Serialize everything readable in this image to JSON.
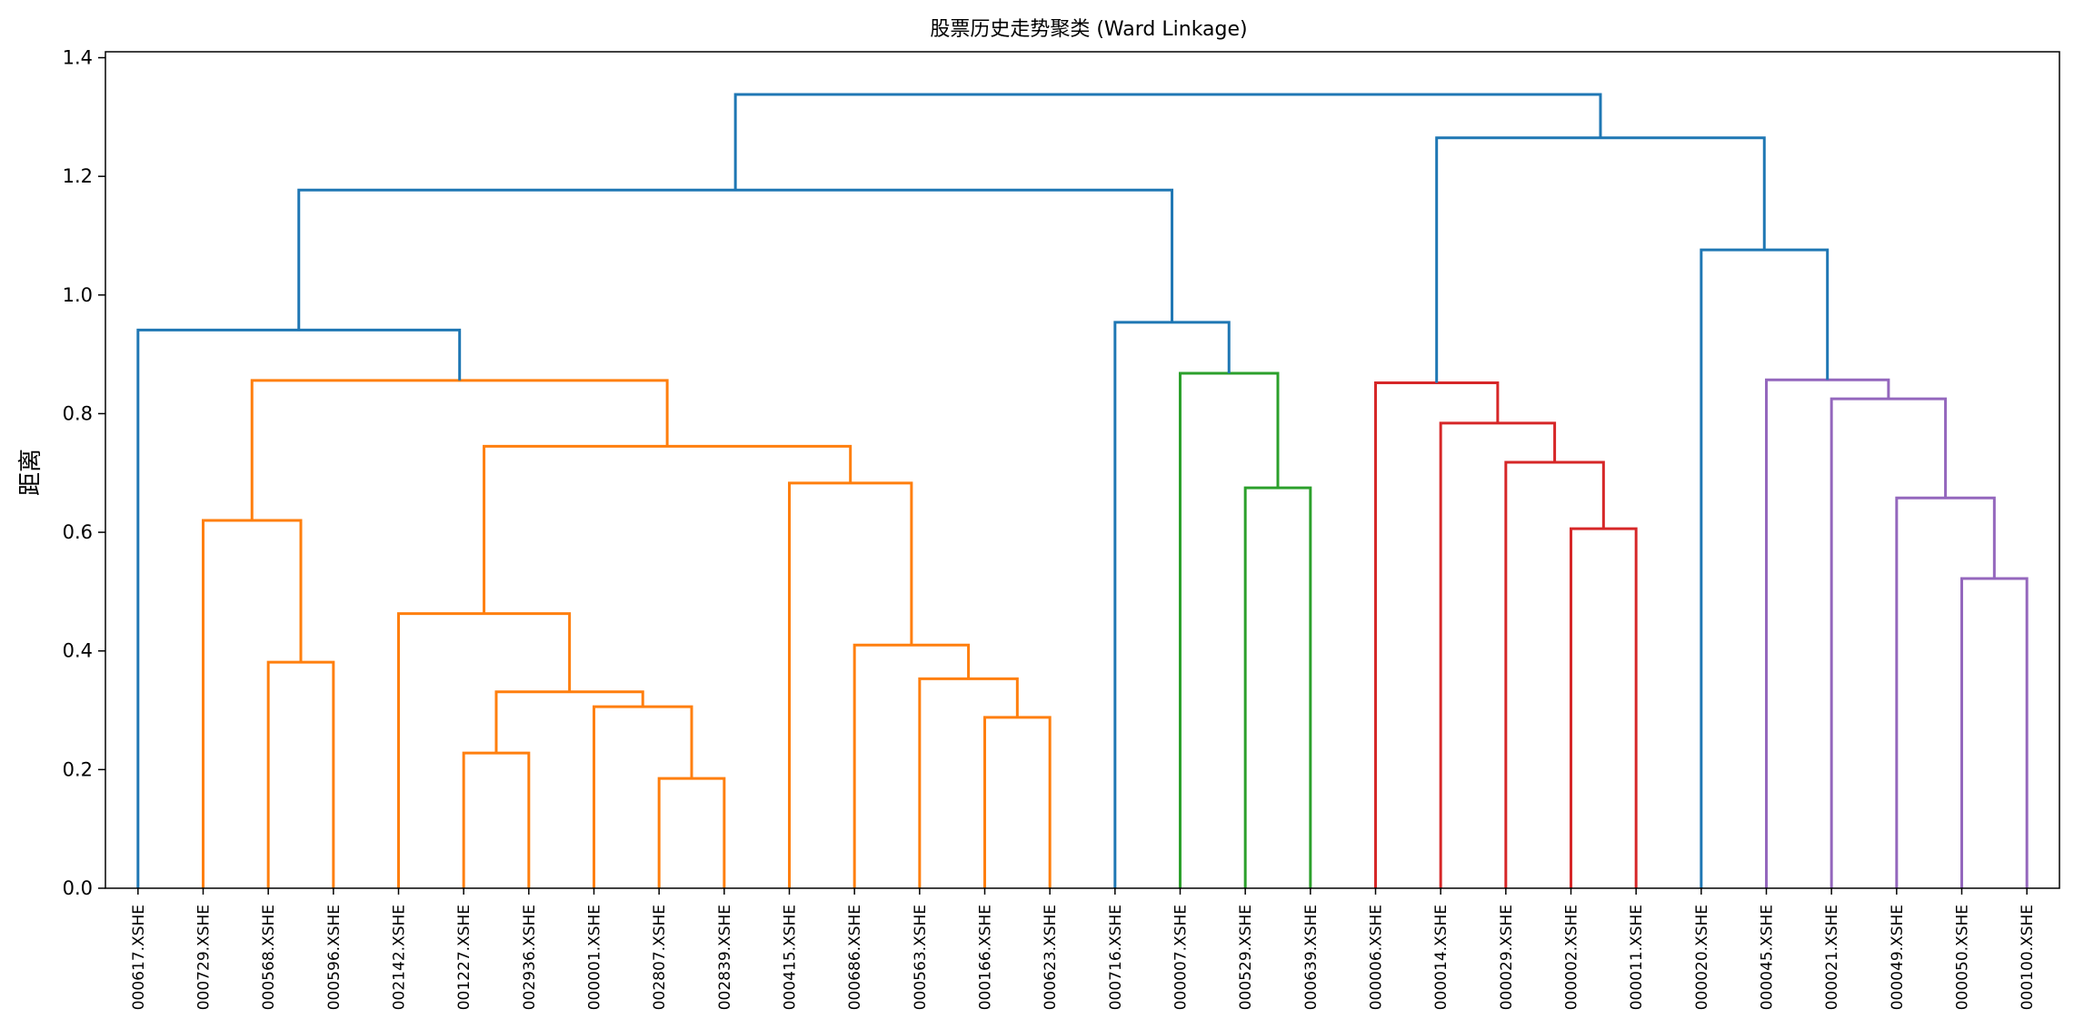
{
  "chart_data": {
    "type": "dendrogram",
    "title": "股票历史走势聚类 (Ward Linkage)",
    "xlabel": "",
    "ylabel": "距离",
    "ylim": [
      0,
      1.41
    ],
    "yticks": [
      "0.0",
      "0.2",
      "0.4",
      "0.6",
      "0.8",
      "1.0",
      "1.2",
      "1.4"
    ],
    "ytick_values": [
      0,
      0.2,
      0.4,
      0.6,
      0.8,
      1.0,
      1.2,
      1.4
    ],
    "leaves": [
      "000617.XSHE",
      "000729.XSHE",
      "000568.XSHE",
      "000596.XSHE",
      "002142.XSHE",
      "001227.XSHE",
      "002936.XSHE",
      "000001.XSHE",
      "002807.XSHE",
      "002839.XSHE",
      "000415.XSHE",
      "000686.XSHE",
      "000563.XSHE",
      "000166.XSHE",
      "000623.XSHE",
      "000716.XSHE",
      "000007.XSHE",
      "000529.XSHE",
      "000639.XSHE",
      "000006.XSHE",
      "000014.XSHE",
      "000029.XSHE",
      "000002.XSHE",
      "000011.XSHE",
      "000020.XSHE",
      "000045.XSHE",
      "000021.XSHE",
      "000049.XSHE",
      "000050.XSHE",
      "000100.XSHE"
    ],
    "colors": {
      "above_threshold": "#1f77b4",
      "cluster_orange": "#ff7f0e",
      "cluster_green": "#2ca02c",
      "cluster_red": "#d62728",
      "cluster_purple": "#9467bd"
    },
    "merges": [
      {
        "left": "L8",
        "right": "L9",
        "height": 0.185,
        "color": "cluster_orange"
      },
      {
        "left": "L5",
        "right": "L6",
        "height": 0.228,
        "color": "cluster_orange"
      },
      {
        "left": "L13",
        "right": "L14",
        "height": 0.288,
        "color": "cluster_orange"
      },
      {
        "left": "L7",
        "right": "N0",
        "height": 0.306,
        "color": "cluster_orange"
      },
      {
        "left": "N1",
        "right": "N3",
        "height": 0.331,
        "color": "cluster_orange"
      },
      {
        "left": "L12",
        "right": "N2",
        "height": 0.353,
        "color": "cluster_orange"
      },
      {
        "left": "L2",
        "right": "L3",
        "height": 0.381,
        "color": "cluster_orange"
      },
      {
        "left": "L11",
        "right": "N5",
        "height": 0.41,
        "color": "cluster_orange"
      },
      {
        "left": "L4",
        "right": "N4",
        "height": 0.463,
        "color": "cluster_orange"
      },
      {
        "left": "L28",
        "right": "L29",
        "height": 0.522,
        "color": "cluster_purple"
      },
      {
        "left": "L22",
        "right": "L23",
        "height": 0.606,
        "color": "cluster_red"
      },
      {
        "left": "L1",
        "right": "N6",
        "height": 0.62,
        "color": "cluster_orange"
      },
      {
        "left": "L27",
        "right": "N9",
        "height": 0.658,
        "color": "cluster_purple"
      },
      {
        "left": "L17",
        "right": "L18",
        "height": 0.675,
        "color": "cluster_green"
      },
      {
        "left": "L10",
        "right": "N7",
        "height": 0.683,
        "color": "cluster_orange"
      },
      {
        "left": "L21",
        "right": "N10",
        "height": 0.718,
        "color": "cluster_red"
      },
      {
        "left": "N8",
        "right": "N14",
        "height": 0.745,
        "color": "cluster_orange"
      },
      {
        "left": "L20",
        "right": "N15",
        "height": 0.784,
        "color": "cluster_red"
      },
      {
        "left": "L26",
        "right": "N12",
        "height": 0.825,
        "color": "cluster_purple"
      },
      {
        "left": "L19",
        "right": "N17",
        "height": 0.852,
        "color": "cluster_red"
      },
      {
        "left": "N11",
        "right": "N16",
        "height": 0.856,
        "color": "cluster_orange"
      },
      {
        "left": "L25",
        "right": "N18",
        "height": 0.857,
        "color": "cluster_purple"
      },
      {
        "left": "L16",
        "right": "N13",
        "height": 0.868,
        "color": "cluster_green"
      },
      {
        "left": "L0",
        "right": "N20",
        "height": 0.941,
        "color": "above_threshold"
      },
      {
        "left": "L15",
        "right": "N22",
        "height": 0.954,
        "color": "above_threshold"
      },
      {
        "left": "L24",
        "right": "N21",
        "height": 1.076,
        "color": "above_threshold"
      },
      {
        "left": "N23",
        "right": "N24",
        "height": 1.177,
        "color": "above_threshold"
      },
      {
        "left": "N19",
        "right": "N25",
        "height": 1.265,
        "color": "above_threshold"
      },
      {
        "left": "N26",
        "right": "N27",
        "height": 1.338,
        "color": "above_threshold"
      }
    ]
  }
}
